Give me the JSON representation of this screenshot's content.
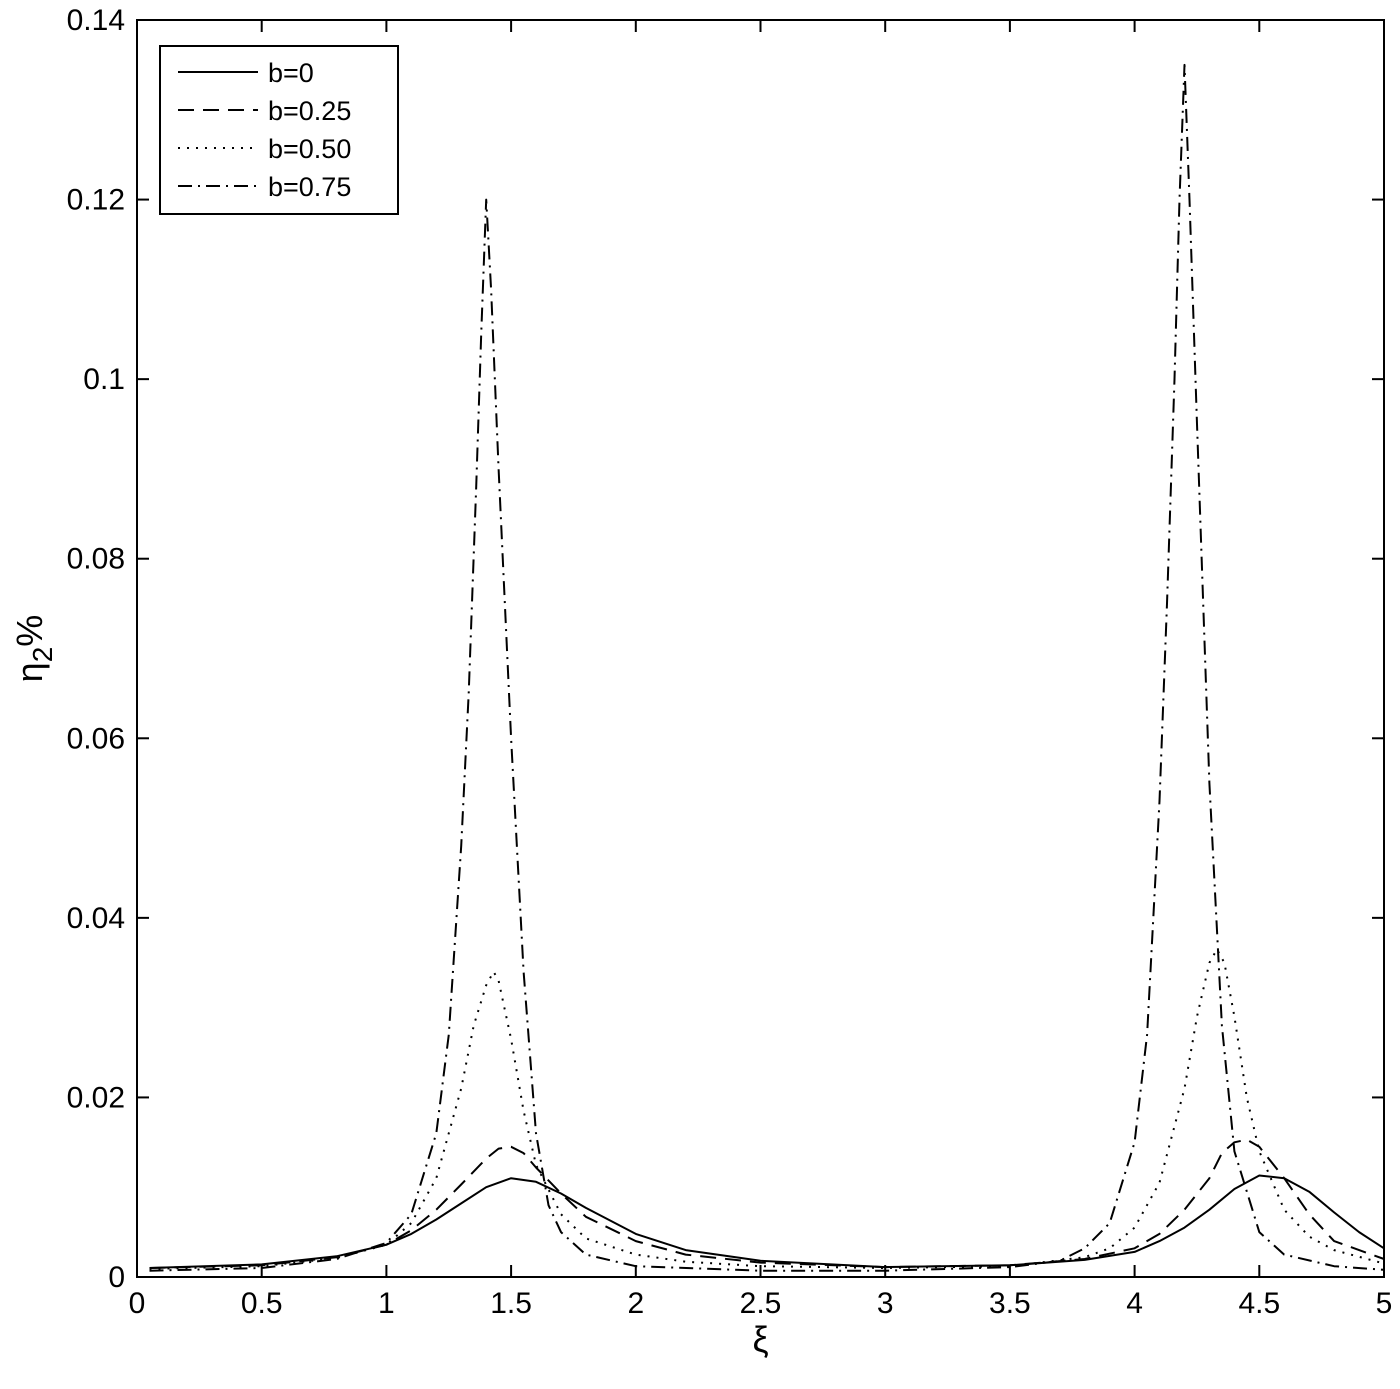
{
  "chart_data": {
    "type": "line",
    "title": "",
    "xlabel": "ξ",
    "ylabel_main": "η",
    "ylabel_sub": "2",
    "ylabel_suffix": "%",
    "xlim": [
      0,
      5
    ],
    "ylim": [
      0,
      0.14
    ],
    "xticks": [
      0,
      0.5,
      1,
      1.5,
      2,
      2.5,
      3,
      3.5,
      4,
      4.5,
      5
    ],
    "xtick_labels": [
      "0",
      "0.5",
      "1",
      "1.5",
      "2",
      "2.5",
      "3",
      "3.5",
      "4",
      "4.5",
      "5"
    ],
    "yticks": [
      0,
      0.02,
      0.04,
      0.06,
      0.08,
      0.1,
      0.12,
      0.14
    ],
    "ytick_labels": [
      "0",
      "0.02",
      "0.04",
      "0.06",
      "0.08",
      "0.1",
      "0.12",
      "0.14"
    ],
    "grid": false,
    "legend_position": "top-left",
    "series": [
      {
        "name": "b=0",
        "style": "solid",
        "x": [
          0.05,
          0.5,
          0.8,
          1.0,
          1.1,
          1.2,
          1.3,
          1.4,
          1.5,
          1.6,
          1.7,
          1.8,
          2.0,
          2.2,
          2.5,
          3.0,
          3.5,
          3.8,
          4.0,
          4.1,
          4.2,
          4.3,
          4.4,
          4.5,
          4.6,
          4.7,
          4.8,
          4.9,
          5.0
        ],
        "y": [
          0.001,
          0.0014,
          0.0023,
          0.0036,
          0.0048,
          0.0064,
          0.0082,
          0.01,
          0.011,
          0.0106,
          0.0093,
          0.0077,
          0.0048,
          0.003,
          0.0018,
          0.0011,
          0.0013,
          0.0019,
          0.0028,
          0.004,
          0.0055,
          0.0075,
          0.0098,
          0.0113,
          0.011,
          0.0095,
          0.0072,
          0.005,
          0.0032
        ]
      },
      {
        "name": "b=0.25",
        "style": "dashed",
        "x": [
          0.05,
          0.5,
          0.8,
          1.0,
          1.1,
          1.2,
          1.3,
          1.4,
          1.45,
          1.5,
          1.55,
          1.6,
          1.7,
          1.8,
          2.0,
          2.2,
          2.5,
          3.0,
          3.5,
          3.8,
          4.0,
          4.1,
          4.2,
          4.3,
          4.35,
          4.4,
          4.45,
          4.5,
          4.6,
          4.7,
          4.8,
          5.0
        ],
        "y": [
          0.001,
          0.0013,
          0.0022,
          0.0036,
          0.0052,
          0.0075,
          0.0103,
          0.0132,
          0.0143,
          0.0145,
          0.0138,
          0.0122,
          0.0093,
          0.0067,
          0.004,
          0.0025,
          0.0016,
          0.0011,
          0.0013,
          0.002,
          0.0032,
          0.0048,
          0.0075,
          0.011,
          0.0138,
          0.015,
          0.0153,
          0.0145,
          0.011,
          0.007,
          0.004,
          0.002
        ]
      },
      {
        "name": "b=0.50",
        "style": "dotted",
        "x": [
          0.05,
          0.5,
          0.8,
          1.0,
          1.1,
          1.2,
          1.3,
          1.35,
          1.4,
          1.43,
          1.45,
          1.5,
          1.55,
          1.6,
          1.7,
          1.8,
          2.0,
          2.2,
          2.5,
          3.0,
          3.5,
          3.8,
          3.9,
          4.0,
          4.1,
          4.2,
          4.25,
          4.3,
          4.33,
          4.36,
          4.4,
          4.45,
          4.5,
          4.6,
          4.7,
          4.8,
          5.0
        ],
        "y": [
          0.0009,
          0.0012,
          0.0021,
          0.0036,
          0.006,
          0.011,
          0.021,
          0.028,
          0.0325,
          0.034,
          0.033,
          0.0265,
          0.0185,
          0.0125,
          0.007,
          0.0043,
          0.0025,
          0.0017,
          0.0012,
          0.001,
          0.0012,
          0.0022,
          0.0032,
          0.0055,
          0.0105,
          0.021,
          0.029,
          0.035,
          0.0365,
          0.035,
          0.029,
          0.02,
          0.014,
          0.0075,
          0.0045,
          0.003,
          0.0015
        ]
      },
      {
        "name": "b=0.75",
        "style": "dashdot",
        "x": [
          0.05,
          0.5,
          0.8,
          1.0,
          1.1,
          1.2,
          1.25,
          1.3,
          1.33,
          1.36,
          1.38,
          1.4,
          1.42,
          1.45,
          1.5,
          1.55,
          1.6,
          1.65,
          1.7,
          1.8,
          2.0,
          2.5,
          3.0,
          3.5,
          3.7,
          3.8,
          3.9,
          4.0,
          4.05,
          4.1,
          4.13,
          4.16,
          4.18,
          4.2,
          4.22,
          4.25,
          4.3,
          4.35,
          4.4,
          4.5,
          4.6,
          4.8,
          5.0
        ],
        "y": [
          0.0007,
          0.001,
          0.002,
          0.0038,
          0.007,
          0.016,
          0.027,
          0.048,
          0.065,
          0.088,
          0.105,
          0.12,
          0.11,
          0.09,
          0.06,
          0.034,
          0.016,
          0.008,
          0.005,
          0.0025,
          0.0012,
          0.0007,
          0.0007,
          0.0011,
          0.0018,
          0.0032,
          0.006,
          0.015,
          0.027,
          0.053,
          0.075,
          0.1,
          0.12,
          0.135,
          0.12,
          0.095,
          0.055,
          0.028,
          0.014,
          0.005,
          0.0025,
          0.0012,
          0.0008
        ]
      }
    ]
  }
}
